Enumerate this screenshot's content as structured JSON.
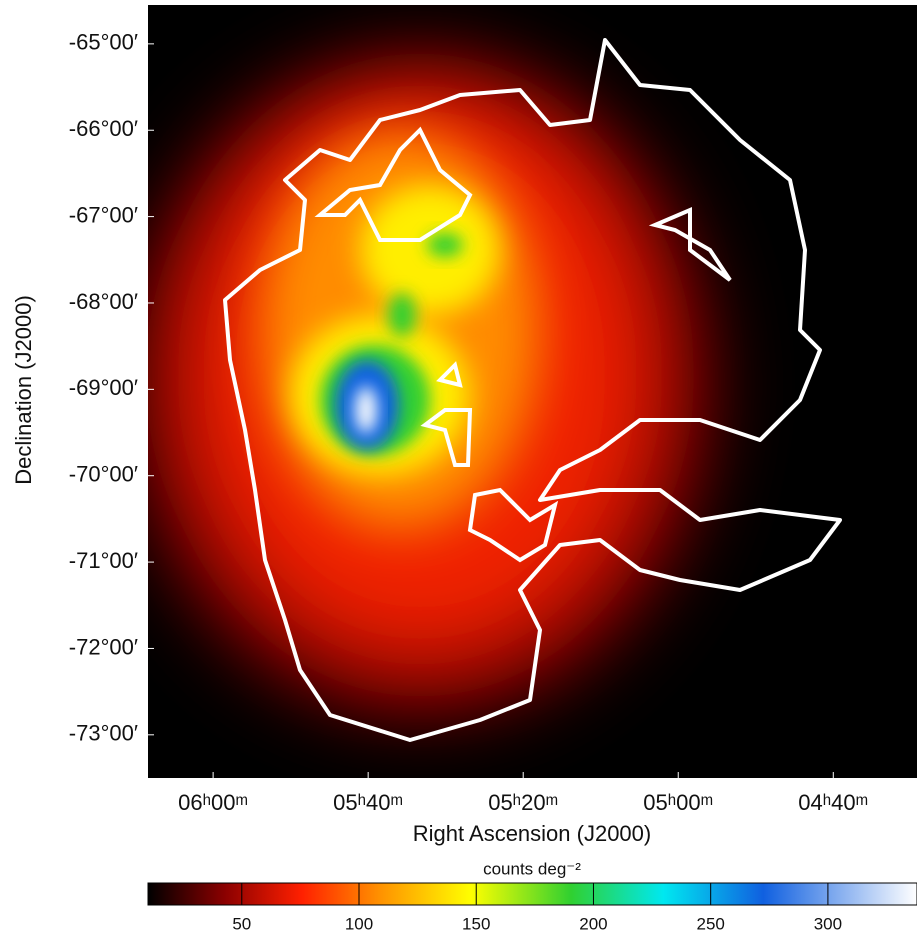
{
  "chart_data": {
    "type": "heatmap",
    "x_label": "Right Ascension (J2000)",
    "y_label": "Declination (J2000)",
    "xlim": [
      92.1,
      67.3
    ],
    "xticks": [
      {
        "value": 90,
        "label": "06ʰ00ᵐ"
      },
      {
        "value": 85,
        "label": "05ʰ40ᵐ"
      },
      {
        "value": 80,
        "label": "05ʰ20ᵐ"
      },
      {
        "value": 75,
        "label": "05ʰ00ᵐ"
      },
      {
        "value": 70,
        "label": "04ʰ40ᵐ"
      }
    ],
    "ylim": [
      -73.5,
      -64.55
    ],
    "yticks": [
      {
        "value": -65,
        "label": "-65°00′"
      },
      {
        "value": -66,
        "label": "-66°00′"
      },
      {
        "value": -67,
        "label": "-67°00′"
      },
      {
        "value": -68,
        "label": "-68°00′"
      },
      {
        "value": -69,
        "label": "-69°00′"
      },
      {
        "value": -70,
        "label": "-70°00′"
      },
      {
        "value": -71,
        "label": "-71°00′"
      },
      {
        "value": -72,
        "label": "-72°00′"
      },
      {
        "value": -73,
        "label": "-73°00′"
      }
    ],
    "colorbar": {
      "label": "counts deg⁻²",
      "lim": [
        10,
        338
      ],
      "ticks": [
        50,
        100,
        150,
        200,
        250,
        300
      ]
    }
  }
}
